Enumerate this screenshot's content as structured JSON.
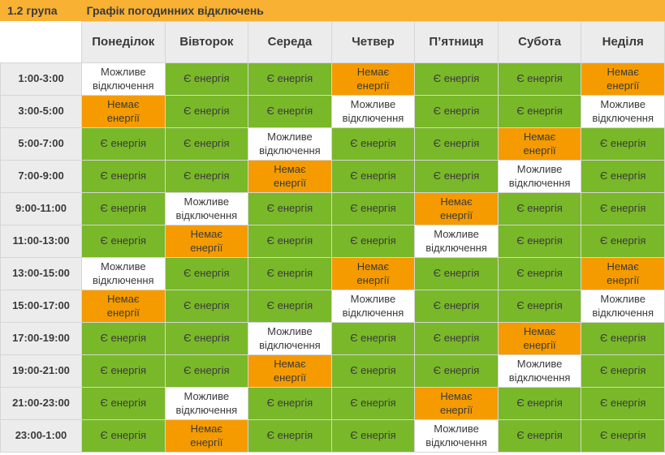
{
  "header": {
    "group": "1.2 група",
    "title": "Графік погодинних відключень"
  },
  "chart_data": {
    "type": "table",
    "title": "Графік погодинних відключень",
    "group": "1.2 група",
    "columns": [
      "Понеділок",
      "Вівторок",
      "Середа",
      "Четвер",
      "П’ятниця",
      "Субота",
      "Неділя"
    ],
    "row_labels": [
      "1:00-3:00",
      "3:00-5:00",
      "5:00-7:00",
      "7:00-9:00",
      "9:00-11:00",
      "11:00-13:00",
      "13:00-15:00",
      "15:00-17:00",
      "17:00-19:00",
      "19:00-21:00",
      "21:00-23:00",
      "23:00-1:00"
    ],
    "legend": {
      "on": "Є енергія",
      "off": "Немає енергії",
      "maybe": "Можливе відключення"
    },
    "cell_states": [
      [
        "maybe",
        "on",
        "on",
        "off",
        "on",
        "on",
        "off"
      ],
      [
        "off",
        "on",
        "on",
        "maybe",
        "on",
        "on",
        "maybe"
      ],
      [
        "on",
        "on",
        "maybe",
        "on",
        "on",
        "off",
        "on"
      ],
      [
        "on",
        "on",
        "off",
        "on",
        "on",
        "maybe",
        "on"
      ],
      [
        "on",
        "maybe",
        "on",
        "on",
        "off",
        "on",
        "on"
      ],
      [
        "on",
        "off",
        "on",
        "on",
        "maybe",
        "on",
        "on"
      ],
      [
        "maybe",
        "on",
        "on",
        "off",
        "on",
        "on",
        "off"
      ],
      [
        "off",
        "on",
        "on",
        "maybe",
        "on",
        "on",
        "maybe"
      ],
      [
        "on",
        "on",
        "maybe",
        "on",
        "on",
        "off",
        "on"
      ],
      [
        "on",
        "on",
        "off",
        "on",
        "on",
        "maybe",
        "on"
      ],
      [
        "on",
        "maybe",
        "on",
        "on",
        "off",
        "on",
        "on"
      ],
      [
        "on",
        "off",
        "on",
        "on",
        "maybe",
        "on",
        "on"
      ]
    ]
  },
  "states": {
    "on": {
      "label": "Є енергія",
      "bg": "#79b829",
      "text": "#3a3a3a"
    },
    "off": {
      "label": "Немає\nенергії",
      "bg": "#f59b00",
      "text": "#3a3a3a"
    },
    "maybe": {
      "label": "Можливе\nвідключення",
      "bg": "#ffffff",
      "text": "#3a3a3a"
    }
  },
  "colors": {
    "topbar": "#f8b133",
    "header_bg": "#ececec",
    "border": "#d6d6d6",
    "text": "#3a3a3a"
  }
}
